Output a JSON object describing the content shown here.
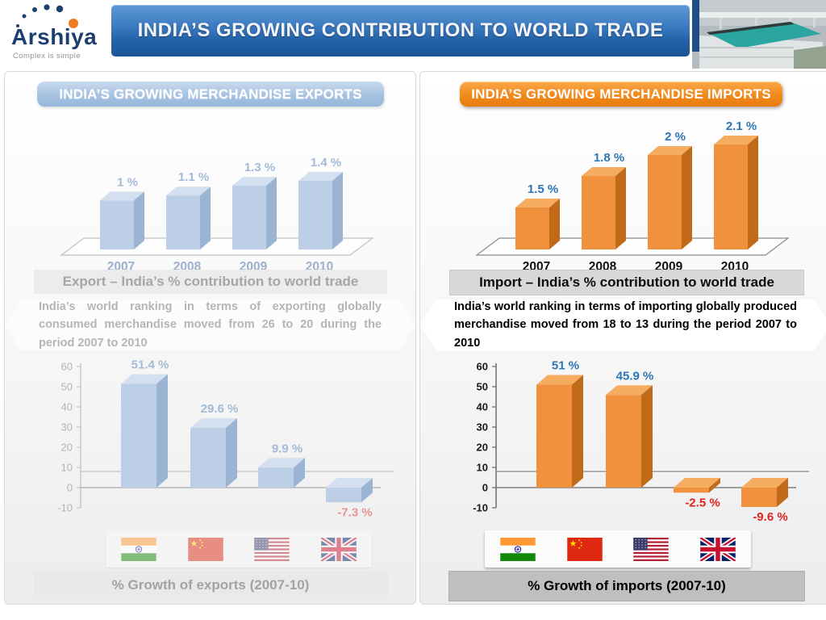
{
  "header": {
    "logo": {
      "name": "Arshiya",
      "tagline": "Complex is simple"
    },
    "title": "INDIA’S GROWING CONTRIBUTION TO WORLD TRADE"
  },
  "panels": {
    "exports": {
      "title": "INDIA’S GROWING MERCHANDISE EXPORTS",
      "caption_contribution": "Export – India’s % contribution to world trade",
      "ranking_text": "India’s world ranking in terms of exporting globally consumed merchandise moved from 26 to 20 during the period 2007 to 2010",
      "caption_growth": "% Growth of exports (2007-10)"
    },
    "imports": {
      "title": "INDIA’S GROWING MERCHANDISE IMPORTS",
      "caption_contribution": "Import – India’s % contribution to world trade",
      "ranking_text": "India’s world ranking in terms of importing globally produced merchandise moved from 18 to 13 during the period 2007 to 2010",
      "caption_growth": "% Growth of imports (2007-10)"
    }
  },
  "chart_data": [
    {
      "id": "export_contribution",
      "type": "bar",
      "title": "Export – India’s % contribution to world trade",
      "categories": [
        "2007",
        "2008",
        "2009",
        "2010"
      ],
      "values": [
        1,
        1.1,
        1.3,
        1.4
      ],
      "value_labels": [
        "1 %",
        "1.1 %",
        "1.3 %",
        "1.4 %"
      ],
      "unit": "%",
      "ylim": [
        0,
        1.4
      ],
      "grid": false,
      "legend": "none"
    },
    {
      "id": "import_contribution",
      "type": "bar",
      "title": "Import – India’s % contribution to world trade",
      "categories": [
        "2007",
        "2008",
        "2009",
        "2010"
      ],
      "values": [
        1.5,
        1.8,
        2,
        2.1
      ],
      "value_labels": [
        "1.5 %",
        "1.8 %",
        "2 %",
        "2.1 %"
      ],
      "unit": "%",
      "ylim": [
        1.1,
        2.1
      ],
      "grid": false,
      "legend": "none"
    },
    {
      "id": "export_growth",
      "type": "bar",
      "title": "% Growth of exports (2007-10)",
      "categories": [
        "India",
        "China",
        "USA",
        "UK"
      ],
      "values": [
        51.4,
        29.6,
        9.9,
        -7.3
      ],
      "value_labels": [
        "51.4 %",
        "29.6 %",
        "9.9 %",
        "-7.3 %"
      ],
      "unit": "%",
      "ylim": [
        -10,
        60
      ],
      "yticks": [
        60,
        50,
        40,
        30,
        20,
        10,
        0,
        -10
      ],
      "reference_line": 8,
      "grid": false,
      "legend": "none"
    },
    {
      "id": "import_growth",
      "type": "bar",
      "title": "% Growth of imports (2007-10)",
      "categories": [
        "India",
        "China",
        "USA",
        "UK"
      ],
      "values": [
        51,
        45.9,
        -2.5,
        -9.6
      ],
      "value_labels": [
        "51 %",
        "45.9 %",
        "-2.5 %",
        "-9.6 %"
      ],
      "unit": "%",
      "ylim": [
        -10,
        60
      ],
      "yticks": [
        60,
        50,
        40,
        30,
        20,
        10,
        0,
        -10
      ],
      "reference_line": 8,
      "grid": false,
      "legend": "none"
    }
  ],
  "colors": {
    "header_blue": "#2e6db4",
    "logo_navy": "#1d3f70",
    "logo_orange": "#f07a21",
    "export_bar": "#bdcfe7",
    "import_bar": "#f0913d",
    "data_label_blue": "#2e75b6",
    "negative_red": "#e02222",
    "export_pill": "#a6c2e1",
    "import_pill": "#f18a1d"
  }
}
